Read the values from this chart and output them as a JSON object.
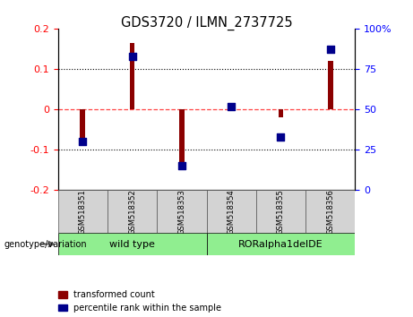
{
  "title": "GDS3720 / ILMN_2737725",
  "samples": [
    "GSM518351",
    "GSM518352",
    "GSM518353",
    "GSM518354",
    "GSM518355",
    "GSM518356"
  ],
  "transformed_count": [
    -0.075,
    0.165,
    -0.13,
    0.008,
    -0.02,
    0.12
  ],
  "percentile_rank": [
    30,
    83,
    15,
    52,
    33,
    87
  ],
  "ylim_left": [
    -0.2,
    0.2
  ],
  "ylim_right": [
    0,
    100
  ],
  "yticks_left": [
    -0.2,
    -0.1,
    0.0,
    0.1,
    0.2
  ],
  "ytick_labels_left": [
    "-0.2",
    "-0.1",
    "0",
    "0.1",
    "0.2"
  ],
  "yticks_right": [
    0,
    25,
    50,
    75,
    100
  ],
  "ytick_labels_right": [
    "0",
    "25",
    "50",
    "75",
    "100%"
  ],
  "bar_color": "#8B0000",
  "dot_color": "#00008B",
  "hline_color": "#FF4444",
  "legend_items": [
    "transformed count",
    "percentile rank within the sample"
  ],
  "genotype_label": "genotype/variation",
  "group_names": [
    "wild type",
    "RORalpha1delDE"
  ],
  "group_bg_color": "#90EE90",
  "label_bg_color": "#D3D3D3"
}
